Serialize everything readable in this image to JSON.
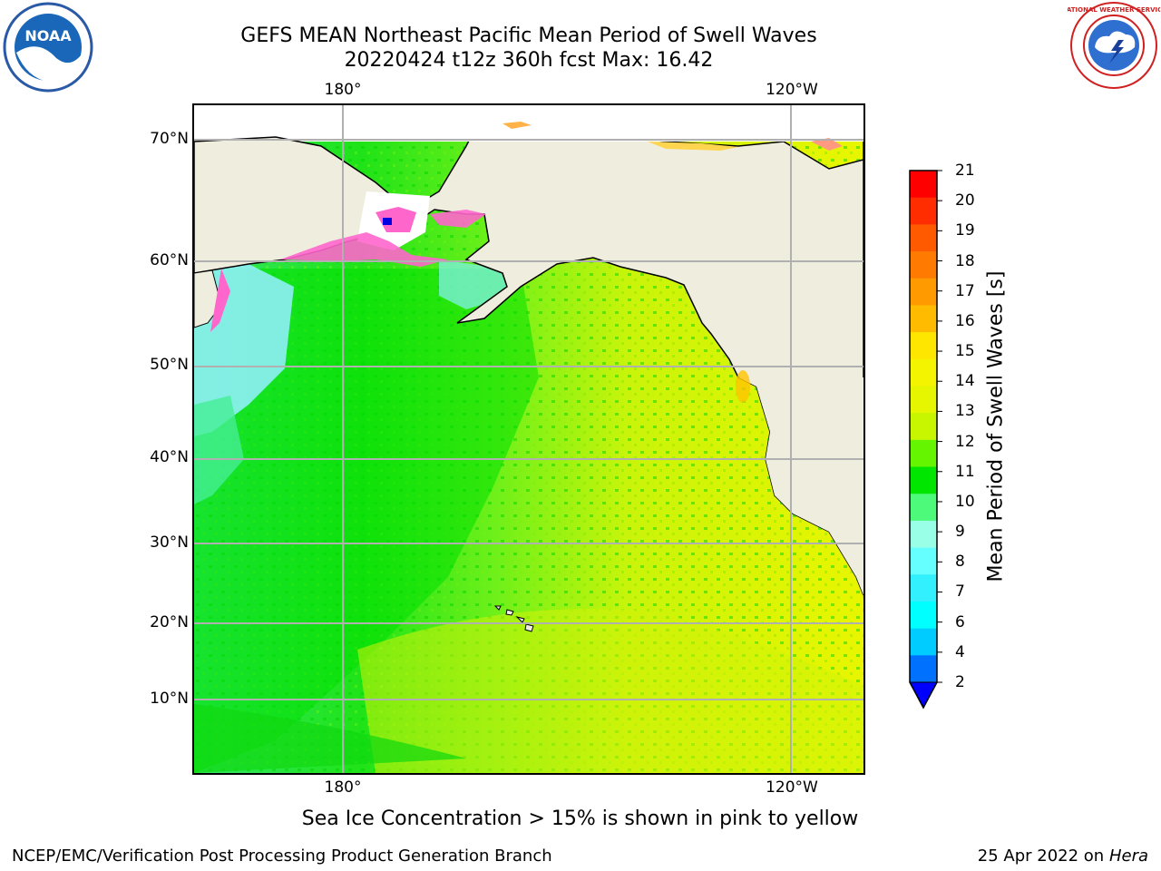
{
  "title": {
    "line1": "GEFS MEAN Northeast Pacific Mean Period of Swell Waves",
    "line2": "20220424 t12z 360h fcst   Max: 16.42"
  },
  "axes": {
    "lon_ticks_top": [
      "180°",
      "120°W"
    ],
    "lon_ticks_bottom": [
      "180°",
      "120°W"
    ],
    "lat_ticks": [
      "70°N",
      "60°N",
      "50°N",
      "40°N",
      "30°N",
      "20°N",
      "10°N"
    ]
  },
  "colorbar": {
    "label": "Mean Period of Swell Waves [s]",
    "ticks": [
      "21",
      "20",
      "19",
      "18",
      "17",
      "16",
      "15",
      "14",
      "13",
      "12",
      "11",
      "10",
      "9",
      "8",
      "7",
      "6",
      "4",
      "2"
    ],
    "colors": [
      "#ff0000",
      "#ff2d00",
      "#ff5a00",
      "#ff7a00",
      "#ff9a00",
      "#ffbb00",
      "#ffe600",
      "#f4f400",
      "#e6f500",
      "#c8f500",
      "#66f500",
      "#00e600",
      "#4dfa7a",
      "#99ffe6",
      "#66ffff",
      "#33f0ff",
      "#00ffff",
      "#00ccff",
      "#0070ff"
    ],
    "extend_color": "#0000ff"
  },
  "colors": {
    "land": "#efedde",
    "ocean_green": "#00e600",
    "ocean_yellow_green": "#c8f500",
    "ocean_yellow": "#e6f500",
    "ocean_cyan": "#8ff0f7",
    "sea_ice_pink": "#ff66cc",
    "gridline": "#b0b0b0"
  },
  "logos": {
    "left": "noara-logo",
    "left_text": "NOAA",
    "right": "nws-logo",
    "right_text": "NATIONAL WEATHER SERVICE"
  },
  "note": "Sea Ice Concentration > 15% is shown in pink to yellow",
  "footer": {
    "left": "NCEP/EMC/Verification Post Processing Product Generation Branch",
    "right_date": "25 Apr 2022 on",
    "right_machine": "Hera"
  }
}
